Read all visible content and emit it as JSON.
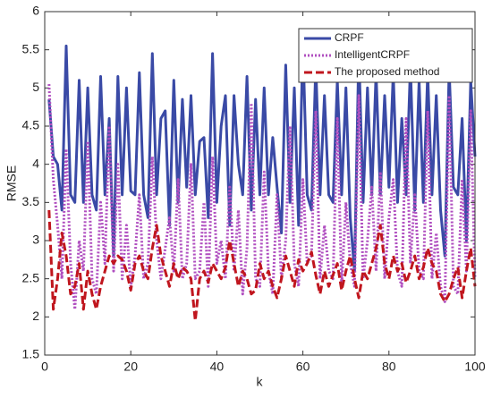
{
  "chart_data": {
    "type": "line",
    "xlabel": "k",
    "ylabel": "RMSE",
    "x": [
      1,
      2,
      3,
      4,
      5,
      6,
      7,
      8,
      9,
      10,
      11,
      12,
      13,
      14,
      15,
      16,
      17,
      18,
      19,
      20,
      21,
      22,
      23,
      24,
      25,
      26,
      27,
      28,
      29,
      30,
      31,
      32,
      33,
      34,
      35,
      36,
      37,
      38,
      39,
      40,
      41,
      42,
      43,
      44,
      45,
      46,
      47,
      48,
      49,
      50,
      51,
      52,
      53,
      54,
      55,
      56,
      57,
      58,
      59,
      60,
      61,
      62,
      63,
      64,
      65,
      66,
      67,
      68,
      69,
      70,
      71,
      72,
      73,
      74,
      75,
      76,
      77,
      78,
      79,
      80,
      81,
      82,
      83,
      84,
      85,
      86,
      87,
      88,
      89,
      90,
      91,
      92,
      93,
      94,
      95,
      96,
      97,
      98,
      99,
      100
    ],
    "series": [
      {
        "name": "CRPF",
        "color": "#3a4aa6",
        "style": "solid",
        "values": [
          4.85,
          4.1,
          4.0,
          3.4,
          5.55,
          3.6,
          3.5,
          5.1,
          3.5,
          5.0,
          3.6,
          3.4,
          5.15,
          3.6,
          4.6,
          2.8,
          5.15,
          3.6,
          5.0,
          3.65,
          3.6,
          5.2,
          3.6,
          3.3,
          5.45,
          3.6,
          4.6,
          4.7,
          3.2,
          5.1,
          3.5,
          4.85,
          3.7,
          4.9,
          3.6,
          4.3,
          4.35,
          3.3,
          5.45,
          3.5,
          4.5,
          4.9,
          3.2,
          4.9,
          4.0,
          3.6,
          5.15,
          3.4,
          4.85,
          3.6,
          5.0,
          3.6,
          4.35,
          3.7,
          3.1,
          5.3,
          3.5,
          5.0,
          3.2,
          5.6,
          3.6,
          3.4,
          5.3,
          3.6,
          4.9,
          3.6,
          3.5,
          5.1,
          3.6,
          5.0,
          3.3,
          2.6,
          5.5,
          3.5,
          5.0,
          3.6,
          5.2,
          3.6,
          4.9,
          3.7,
          5.2,
          3.5,
          4.6,
          3.6,
          5.3,
          3.4,
          5.1,
          3.5,
          5.2,
          3.6,
          4.9,
          3.4,
          2.8,
          5.25,
          3.7,
          3.6,
          4.6,
          3.0,
          5.1,
          4.1
        ]
      },
      {
        "name": "IntelligentCRPF",
        "color": "#b04fc0",
        "style": "dotted",
        "values": [
          5.05,
          3.8,
          3.2,
          2.5,
          4.2,
          2.7,
          2.1,
          3.0,
          2.6,
          4.3,
          2.5,
          2.3,
          3.5,
          2.7,
          4.5,
          2.6,
          4.0,
          2.5,
          3.2,
          2.4,
          2.8,
          3.6,
          2.5,
          2.7,
          4.1,
          3.0,
          2.5,
          2.9,
          3.3,
          2.6,
          3.8,
          2.5,
          2.7,
          4.0,
          2.5,
          2.6,
          3.5,
          2.4,
          4.1,
          2.7,
          3.0,
          2.5,
          3.7,
          2.6,
          3.4,
          2.3,
          2.9,
          4.8,
          2.5,
          2.4,
          3.9,
          2.6,
          2.3,
          3.6,
          2.5,
          3.0,
          4.5,
          2.7,
          2.4,
          3.8,
          2.7,
          2.8,
          4.7,
          2.5,
          3.2,
          2.6,
          2.5,
          4.6,
          2.4,
          3.5,
          2.7,
          2.4,
          4.9,
          2.5,
          3.0,
          3.7,
          2.6,
          3.9,
          2.5,
          3.3,
          3.8,
          2.6,
          2.4,
          4.6,
          2.7,
          3.6,
          2.6,
          2.5,
          4.7,
          2.5,
          3.1,
          2.4,
          2.2,
          4.9,
          2.4,
          2.3,
          3.8,
          2.6,
          4.7,
          2.5
        ]
      },
      {
        "name": "The proposed method",
        "color": "#c0161e",
        "style": "dashed",
        "values": [
          3.4,
          2.1,
          2.5,
          3.1,
          2.8,
          2.3,
          2.4,
          2.7,
          2.1,
          2.6,
          2.3,
          2.1,
          2.4,
          2.6,
          2.8,
          2.7,
          2.8,
          2.75,
          2.6,
          2.35,
          2.7,
          2.8,
          2.6,
          2.5,
          2.9,
          3.2,
          2.8,
          2.6,
          2.4,
          2.7,
          2.5,
          2.65,
          2.6,
          2.5,
          1.95,
          2.5,
          2.6,
          2.45,
          2.7,
          2.6,
          2.5,
          2.65,
          3.0,
          2.7,
          2.4,
          2.6,
          2.5,
          2.3,
          2.35,
          2.7,
          2.5,
          2.6,
          2.4,
          2.25,
          2.5,
          2.8,
          2.6,
          2.4,
          2.75,
          2.6,
          2.7,
          2.85,
          2.55,
          2.3,
          2.6,
          2.4,
          2.55,
          2.7,
          2.35,
          2.6,
          2.8,
          2.5,
          2.25,
          2.6,
          2.5,
          2.7,
          2.9,
          3.2,
          2.7,
          2.5,
          2.8,
          2.6,
          2.7,
          2.45,
          2.6,
          2.8,
          2.5,
          2.65,
          2.9,
          2.7,
          2.6,
          2.3,
          2.2,
          2.3,
          2.5,
          2.65,
          2.25,
          2.6,
          2.9,
          2.4
        ]
      }
    ],
    "xlim": [
      0,
      100
    ],
    "xticks": [
      0,
      20,
      40,
      60,
      80,
      100
    ],
    "ylim": [
      1.5,
      6
    ],
    "yticks": [
      1.5,
      2,
      2.5,
      3,
      3.5,
      4,
      4.5,
      5,
      5.5,
      6
    ],
    "legend": "upper right"
  }
}
